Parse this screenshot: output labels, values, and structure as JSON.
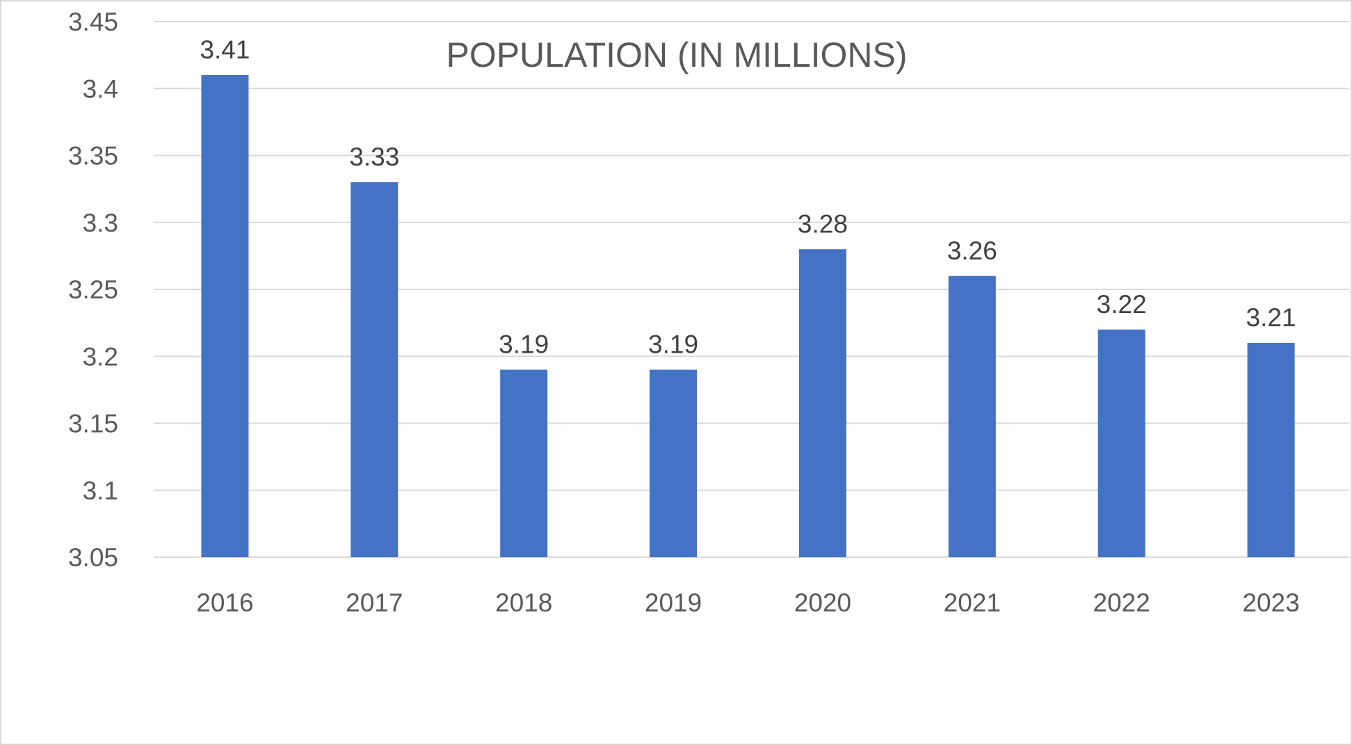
{
  "chart_data": {
    "type": "bar",
    "title": "POPULATION (IN MILLIONS)",
    "categories": [
      "2016",
      "2017",
      "2018",
      "2019",
      "2020",
      "2021",
      "2022",
      "2023"
    ],
    "values": [
      3.41,
      3.33,
      3.19,
      3.19,
      3.28,
      3.26,
      3.22,
      3.21
    ],
    "data_labels": [
      "3.41",
      "3.33",
      "3.19",
      "3.19",
      "3.28",
      "3.26",
      "3.22",
      "3.21"
    ],
    "ylim": [
      3.05,
      3.45
    ],
    "yticks": [
      "3.05",
      "3.1",
      "3.15",
      "3.2",
      "3.25",
      "3.3",
      "3.35",
      "3.4",
      "3.45"
    ],
    "xlabel": "",
    "ylabel": "",
    "grid": true,
    "legend": "none",
    "colors": {
      "bar": "#4472c4",
      "grid": "#d9d9d9",
      "text": "#595959",
      "label": "#404040"
    }
  }
}
